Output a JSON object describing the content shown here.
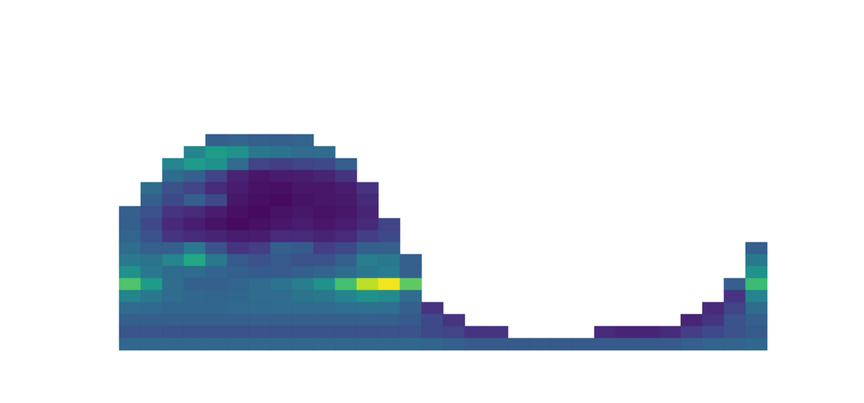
{
  "chart_data": {
    "type": "heatmap",
    "color": "viridis",
    "zlim": [
      0,
      1
    ],
    "tick_labels": false,
    "cells": [
      [
        null,
        null,
        null,
        null,
        0.3,
        0.32,
        0.3,
        0.3,
        0.32,
        null,
        null,
        null,
        null,
        null,
        null,
        null,
        null,
        null,
        null,
        null,
        null,
        null,
        null,
        null,
        null,
        null,
        null,
        null,
        null,
        null
      ],
      [
        null,
        null,
        null,
        0.45,
        0.55,
        0.5,
        0.4,
        0.38,
        0.35,
        0.35,
        null,
        null,
        null,
        null,
        null,
        null,
        null,
        null,
        null,
        null,
        null,
        null,
        null,
        null,
        null,
        null,
        null,
        null,
        null,
        null
      ],
      [
        null,
        null,
        0.45,
        0.55,
        0.5,
        0.35,
        0.2,
        0.18,
        0.2,
        0.22,
        0.3,
        null,
        null,
        null,
        null,
        null,
        null,
        null,
        null,
        null,
        null,
        null,
        null,
        null,
        null,
        null,
        null,
        null,
        null,
        null
      ],
      [
        null,
        null,
        0.35,
        0.3,
        0.2,
        0.1,
        0.06,
        0.08,
        0.08,
        0.1,
        0.15,
        null,
        null,
        null,
        null,
        null,
        null,
        null,
        null,
        null,
        null,
        null,
        null,
        null,
        null,
        null,
        null,
        null,
        null,
        null
      ],
      [
        null,
        0.35,
        0.25,
        0.2,
        0.12,
        0.08,
        0.05,
        0.04,
        0.06,
        0.06,
        0.08,
        0.15,
        null,
        null,
        null,
        null,
        null,
        null,
        null,
        null,
        null,
        null,
        null,
        null,
        null,
        null,
        null,
        null,
        null,
        null
      ],
      [
        null,
        0.3,
        0.22,
        0.3,
        0.22,
        0.06,
        0.04,
        0.03,
        0.05,
        0.06,
        0.07,
        0.12,
        null,
        null,
        null,
        null,
        null,
        null,
        null,
        null,
        null,
        null,
        null,
        null,
        null,
        null,
        null,
        null,
        null,
        null
      ],
      [
        0.3,
        0.25,
        0.15,
        0.12,
        0.08,
        0.04,
        0.03,
        0.05,
        0.06,
        0.05,
        0.06,
        0.1,
        null,
        null,
        null,
        null,
        null,
        null,
        null,
        null,
        null,
        null,
        null,
        null,
        null,
        null,
        null,
        null,
        null,
        null
      ],
      [
        0.3,
        0.22,
        0.12,
        0.08,
        0.05,
        0.03,
        0.04,
        0.06,
        0.08,
        0.06,
        0.08,
        0.12,
        0.2,
        null,
        null,
        null,
        null,
        null,
        null,
        null,
        null,
        null,
        null,
        null,
        null,
        null,
        null,
        null,
        null,
        null
      ],
      [
        0.32,
        0.25,
        0.15,
        0.12,
        0.1,
        0.08,
        0.08,
        0.12,
        0.12,
        0.1,
        0.12,
        0.18,
        0.22,
        null,
        null,
        null,
        null,
        null,
        null,
        null,
        null,
        null,
        null,
        null,
        null,
        null,
        null,
        null,
        null,
        null
      ],
      [
        0.35,
        0.3,
        0.3,
        0.4,
        0.25,
        0.15,
        0.18,
        0.3,
        0.28,
        0.18,
        0.22,
        0.3,
        0.3,
        null,
        null,
        null,
        null,
        null,
        null,
        null,
        null,
        null,
        null,
        null,
        null,
        null,
        null,
        null,
        null,
        0.3
      ],
      [
        0.4,
        0.38,
        0.45,
        0.6,
        0.4,
        0.28,
        0.25,
        0.28,
        0.25,
        0.25,
        0.3,
        0.42,
        0.4,
        0.3,
        null,
        null,
        null,
        null,
        null,
        null,
        null,
        null,
        null,
        null,
        null,
        null,
        null,
        null,
        null,
        0.4
      ],
      [
        0.5,
        0.4,
        0.35,
        0.35,
        0.32,
        0.3,
        0.28,
        0.28,
        0.3,
        0.32,
        0.35,
        0.4,
        0.42,
        0.3,
        null,
        null,
        null,
        null,
        null,
        null,
        null,
        null,
        null,
        null,
        null,
        null,
        null,
        null,
        null,
        0.5
      ],
      [
        0.72,
        0.55,
        0.35,
        0.3,
        0.3,
        0.32,
        0.35,
        0.38,
        0.42,
        0.5,
        0.7,
        0.9,
        0.98,
        0.75,
        null,
        null,
        null,
        null,
        null,
        null,
        null,
        null,
        null,
        null,
        null,
        null,
        null,
        null,
        0.3,
        0.68
      ],
      [
        0.45,
        0.4,
        0.35,
        0.33,
        0.32,
        0.33,
        0.35,
        0.35,
        0.38,
        0.4,
        0.45,
        0.5,
        0.48,
        0.35,
        null,
        null,
        null,
        null,
        null,
        null,
        null,
        null,
        null,
        null,
        null,
        null,
        null,
        null,
        0.15,
        0.45
      ],
      [
        0.35,
        0.34,
        0.33,
        0.33,
        0.33,
        0.34,
        0.34,
        0.35,
        0.35,
        0.35,
        0.36,
        0.37,
        0.36,
        0.3,
        0.15,
        null,
        null,
        null,
        null,
        null,
        null,
        null,
        null,
        null,
        null,
        null,
        null,
        0.12,
        0.2,
        0.35
      ],
      [
        0.3,
        0.3,
        0.3,
        0.3,
        0.3,
        0.3,
        0.3,
        0.3,
        0.3,
        0.3,
        0.3,
        0.3,
        0.3,
        0.28,
        0.22,
        0.15,
        null,
        null,
        null,
        null,
        null,
        null,
        null,
        null,
        null,
        null,
        0.1,
        0.15,
        0.25,
        0.3
      ],
      [
        0.26,
        0.26,
        0.25,
        0.25,
        0.25,
        0.25,
        0.25,
        0.25,
        0.25,
        0.25,
        0.25,
        0.25,
        0.25,
        0.25,
        0.22,
        0.2,
        0.15,
        0.15,
        null,
        null,
        null,
        null,
        0.12,
        0.1,
        0.1,
        0.12,
        0.18,
        0.22,
        0.25,
        0.28
      ],
      [
        0.33,
        0.33,
        0.33,
        0.33,
        0.33,
        0.33,
        0.33,
        0.33,
        0.33,
        0.33,
        0.33,
        0.33,
        0.33,
        0.33,
        0.32,
        0.3,
        0.28,
        0.28,
        0.28,
        0.28,
        0.28,
        0.28,
        0.28,
        0.28,
        0.28,
        0.28,
        0.3,
        0.32,
        0.32,
        0.33
      ]
    ]
  }
}
